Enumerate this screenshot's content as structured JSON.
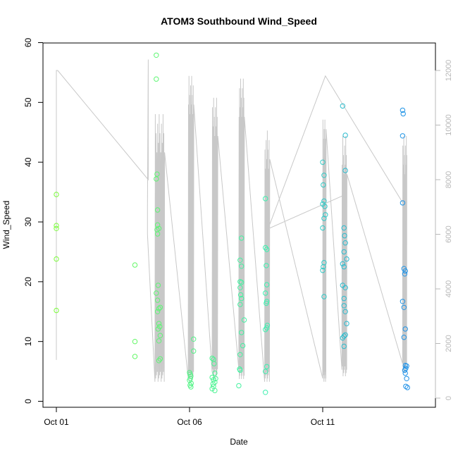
{
  "chart_data": {
    "type": "scatter",
    "title": "ATOM3 Southbound Wind_Speed",
    "xlabel": "Date",
    "ylabel": "Wind_Speed",
    "x_ticks": [
      {
        "day": 1,
        "label": "Oct 01"
      },
      {
        "day": 6,
        "label": "Oct 06"
      },
      {
        "day": 11,
        "label": "Oct 11"
      }
    ],
    "xlim_day": [
      0.6,
      15.4
    ],
    "ylim": [
      0,
      60
    ],
    "y_ticks": [
      0,
      10,
      20,
      30,
      40,
      50,
      60
    ],
    "y2lim": [
      0,
      12800
    ],
    "y2_ticks": [
      0,
      2000,
      4000,
      6000,
      8000,
      10000,
      12000
    ],
    "grid": false,
    "colors": {
      "secondary_line": "#c8c8c8",
      "gradient_start": "#7cfc3c",
      "gradient_mid": "#3cf0b0",
      "gradient_end": "#1e90e8"
    },
    "series": [
      {
        "values": [
          [
            1.0,
            34.6
          ],
          [
            1.0,
            29.4
          ],
          [
            1.0,
            28.9
          ],
          [
            1.0,
            23.8
          ],
          [
            1.0,
            15.2
          ],
          [
            3.95,
            22.8
          ],
          [
            3.95,
            10.0
          ],
          [
            3.95,
            7.5
          ],
          [
            4.75,
            57.9
          ],
          [
            4.75,
            53.9
          ],
          [
            4.78,
            38.0
          ],
          [
            4.75,
            37.2
          ],
          [
            4.8,
            32.0
          ],
          [
            4.8,
            29.5
          ],
          [
            4.78,
            28.7
          ],
          [
            4.85,
            28.9
          ],
          [
            4.8,
            28.0
          ],
          [
            4.82,
            19.4
          ],
          [
            4.75,
            18.1
          ],
          [
            4.8,
            16.9
          ],
          [
            4.9,
            15.7
          ],
          [
            4.85,
            15.5
          ],
          [
            4.8,
            15.0
          ],
          [
            4.85,
            13.0
          ],
          [
            4.88,
            12.5
          ],
          [
            4.82,
            12.1
          ],
          [
            4.9,
            11.0
          ],
          [
            4.85,
            10.1
          ],
          [
            4.9,
            7.1
          ],
          [
            4.85,
            6.8
          ],
          [
            6.0,
            4.8
          ],
          [
            6.02,
            4.5
          ],
          [
            6.05,
            4.2
          ],
          [
            6.03,
            3.8
          ],
          [
            6.0,
            3.5
          ],
          [
            6.06,
            3.0
          ],
          [
            6.02,
            2.7
          ],
          [
            6.05,
            2.4
          ],
          [
            6.15,
            10.4
          ],
          [
            6.15,
            8.4
          ],
          [
            6.85,
            7.2
          ],
          [
            6.9,
            7.0
          ],
          [
            6.92,
            6.3
          ],
          [
            6.95,
            4.7
          ],
          [
            6.85,
            4.0
          ],
          [
            6.9,
            3.6
          ],
          [
            6.95,
            3.2
          ],
          [
            6.88,
            2.9
          ],
          [
            6.9,
            2.5
          ],
          [
            6.85,
            2.1
          ],
          [
            6.95,
            1.8
          ],
          [
            6.98,
            3.8
          ],
          [
            7.95,
            27.3
          ],
          [
            7.9,
            23.6
          ],
          [
            7.95,
            22.6
          ],
          [
            7.9,
            20.0
          ],
          [
            7.95,
            19.9
          ],
          [
            7.9,
            19.0
          ],
          [
            7.92,
            17.8
          ],
          [
            7.95,
            17.2
          ],
          [
            7.9,
            16.2
          ],
          [
            7.95,
            11.5
          ],
          [
            7.9,
            7.8
          ],
          [
            7.88,
            5.4
          ],
          [
            7.9,
            5.2
          ],
          [
            7.85,
            2.6
          ],
          [
            8.0,
            9.3
          ],
          [
            8.05,
            13.6
          ],
          [
            8.85,
            33.9
          ],
          [
            8.85,
            25.7
          ],
          [
            8.9,
            25.4
          ],
          [
            8.88,
            22.7
          ],
          [
            8.9,
            19.5
          ],
          [
            8.85,
            18.1
          ],
          [
            8.9,
            16.7
          ],
          [
            8.88,
            16.4
          ],
          [
            8.85,
            12.0
          ],
          [
            8.9,
            12.3
          ],
          [
            8.92,
            12.7
          ],
          [
            8.9,
            5.8
          ],
          [
            8.85,
            5.0
          ],
          [
            8.85,
            1.5
          ],
          [
            11.0,
            40.0
          ],
          [
            11.05,
            37.8
          ],
          [
            11.02,
            36.2
          ],
          [
            11.05,
            33.5
          ],
          [
            11.0,
            33.0
          ],
          [
            11.08,
            32.6
          ],
          [
            11.1,
            31.2
          ],
          [
            11.05,
            30.6
          ],
          [
            11.0,
            29.0
          ],
          [
            11.05,
            23.2
          ],
          [
            11.02,
            22.5
          ],
          [
            11.0,
            21.9
          ],
          [
            11.05,
            17.5
          ],
          [
            11.75,
            49.4
          ],
          [
            11.85,
            44.5
          ],
          [
            11.85,
            38.6
          ],
          [
            11.8,
            29.0
          ],
          [
            11.82,
            27.7
          ],
          [
            11.85,
            26.5
          ],
          [
            11.8,
            25.0
          ],
          [
            11.75,
            23.0
          ],
          [
            11.8,
            22.5
          ],
          [
            11.9,
            23.8
          ],
          [
            11.75,
            19.4
          ],
          [
            11.85,
            19.0
          ],
          [
            11.8,
            17.2
          ],
          [
            11.8,
            16.0
          ],
          [
            11.85,
            15.0
          ],
          [
            11.9,
            13.0
          ],
          [
            11.85,
            11.1
          ],
          [
            11.8,
            10.9
          ],
          [
            11.75,
            10.6
          ],
          [
            11.8,
            9.2
          ],
          [
            14.0,
            48.7
          ],
          [
            14.02,
            48.1
          ],
          [
            14.0,
            44.4
          ],
          [
            14.0,
            33.2
          ],
          [
            14.05,
            22.2
          ],
          [
            14.1,
            21.8
          ],
          [
            14.08,
            21.3
          ],
          [
            14.0,
            16.7
          ],
          [
            14.05,
            15.7
          ],
          [
            14.1,
            12.1
          ],
          [
            14.05,
            10.7
          ],
          [
            14.1,
            6.0
          ],
          [
            14.15,
            5.9
          ],
          [
            14.12,
            5.5
          ],
          [
            14.08,
            5.2
          ],
          [
            14.1,
            4.7
          ],
          [
            14.15,
            3.8
          ],
          [
            14.12,
            2.5
          ],
          [
            14.18,
            2.3
          ]
        ]
      }
    ]
  }
}
